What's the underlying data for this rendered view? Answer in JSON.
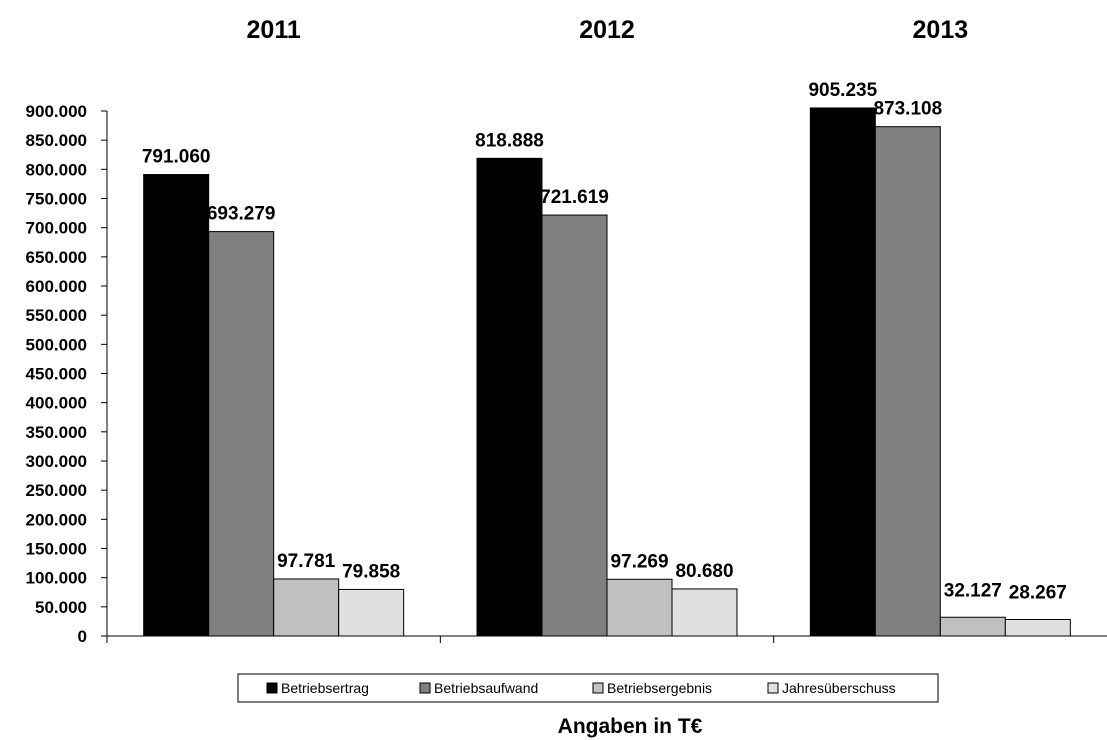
{
  "chart_data": {
    "type": "bar",
    "categories": [
      "2011",
      "2012",
      "2013"
    ],
    "series": [
      {
        "name": "Betriebsertrag",
        "color": "#000000",
        "values": [
          791060,
          818888,
          905235
        ],
        "labels": [
          "791.060",
          "818.888",
          "905.235"
        ]
      },
      {
        "name": "Betriebsaufwand",
        "color": "#808080",
        "values": [
          693279,
          721619,
          873108
        ],
        "labels": [
          "693.279",
          "721.619",
          "873.108"
        ]
      },
      {
        "name": "Betriebsergebnis",
        "color": "#c0c0c0",
        "values": [
          97781,
          97269,
          32127
        ],
        "labels": [
          "97.781",
          "97.269",
          "32.127"
        ]
      },
      {
        "name": "Jahresüberschuss",
        "color": "#e0e0e0",
        "values": [
          79858,
          80680,
          28267
        ],
        "labels": [
          "79.858",
          "80.680",
          "28.267"
        ]
      }
    ],
    "y_ticks": [
      0,
      50000,
      100000,
      150000,
      200000,
      250000,
      300000,
      350000,
      400000,
      450000,
      500000,
      550000,
      600000,
      650000,
      700000,
      750000,
      800000,
      850000,
      900000
    ],
    "y_tick_labels": [
      "0",
      "50.000",
      "100.000",
      "150.000",
      "200.000",
      "250.000",
      "300.000",
      "350.000",
      "400.000",
      "450.000",
      "500.000",
      "550.000",
      "600.000",
      "650.000",
      "700.000",
      "750.000",
      "800.000",
      "850.000",
      "900.000"
    ],
    "ylim": [
      0,
      900000
    ],
    "grid": false,
    "legend_position": "bottom",
    "footnote": "Angaben in T€"
  }
}
